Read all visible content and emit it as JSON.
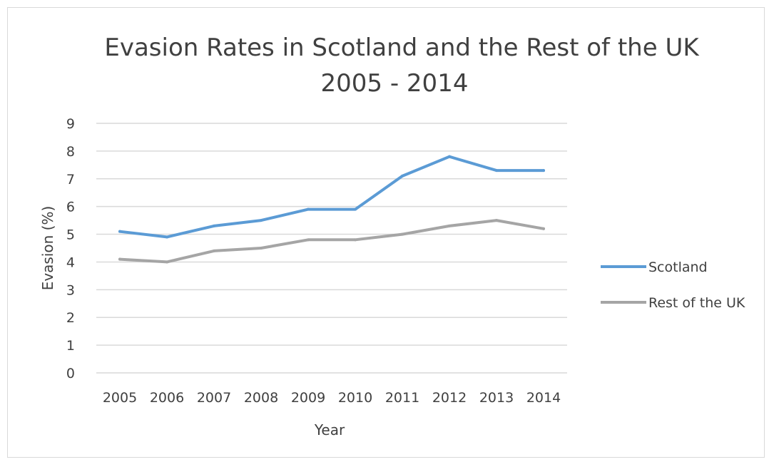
{
  "chart_data": {
    "type": "line",
    "title": "Evasion Rates in Scotland and the Rest of the UK",
    "subtitle": "2005 - 2014",
    "xlabel": "Year",
    "ylabel": "Evasion (%)",
    "categories": [
      "2005",
      "2006",
      "2007",
      "2008",
      "2009",
      "2010",
      "2011",
      "2012",
      "2013",
      "2014"
    ],
    "ylim": [
      0,
      9
    ],
    "yticks": [
      "0",
      "1",
      "2",
      "3",
      "4",
      "5",
      "6",
      "7",
      "8",
      "9"
    ],
    "grid": true,
    "legend_position": "right",
    "series": [
      {
        "name": "Scotland",
        "color": "#5b9bd5",
        "values": [
          5.1,
          4.9,
          5.3,
          5.5,
          5.9,
          5.9,
          7.1,
          7.8,
          7.3,
          7.3
        ]
      },
      {
        "name": "Rest of the UK",
        "color": "#a5a5a5",
        "values": [
          4.1,
          4.0,
          4.4,
          4.5,
          4.8,
          4.8,
          5.0,
          5.3,
          5.5,
          5.2
        ]
      }
    ]
  }
}
